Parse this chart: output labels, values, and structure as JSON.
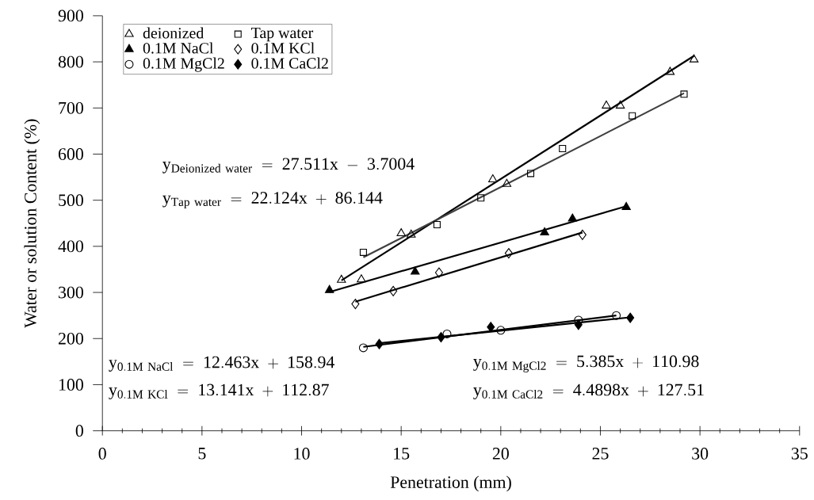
{
  "chart_data": {
    "type": "scatter",
    "xlabel": "Penetration (mm)",
    "ylabel": "Water or solution Content (%)",
    "xlim": [
      0,
      35
    ],
    "ylim": [
      0,
      900
    ],
    "xticks": [
      0,
      5,
      10,
      15,
      20,
      25,
      30,
      35
    ],
    "yticks": [
      0,
      100,
      200,
      300,
      400,
      500,
      600,
      700,
      800,
      900
    ],
    "grid": false,
    "legend": "top left",
    "series": [
      {
        "name": "deionized",
        "marker": "triangle",
        "color": "#000000",
        "x": [
          12,
          13,
          15,
          15.5,
          19.6,
          20.3,
          25.3,
          26,
          28.5,
          29.7
        ],
        "values": [
          327,
          328,
          428,
          425,
          545,
          535,
          705,
          705,
          778,
          805
        ]
      },
      {
        "name": "Tap water",
        "marker": "square",
        "color": "#000000",
        "x": [
          13.1,
          16.8,
          19,
          21.5,
          23.1,
          26.6,
          29.2
        ],
        "values": [
          387,
          447,
          505,
          558,
          612,
          683,
          730
        ]
      },
      {
        "name": "0.1M NaCl",
        "marker": "triangle",
        "color": "#000000",
        "x": [
          11.4,
          15.7,
          22.2,
          23.6,
          26.3
        ],
        "values": [
          305,
          345,
          430,
          460,
          485
        ]
      },
      {
        "name": "0.1M KCl",
        "marker": "diamond",
        "color": "#000000",
        "x": [
          12.7,
          14.6,
          16.9,
          20.4,
          24.1
        ],
        "values": [
          275,
          303,
          343,
          385,
          425
        ]
      },
      {
        "name": "0.1M MgCl2",
        "marker": "circle",
        "color": "#000000",
        "x": [
          13.1,
          17.3,
          20,
          23.9,
          25.8
        ],
        "values": [
          180,
          210,
          218,
          240,
          250
        ]
      },
      {
        "name": "0.1M CaCl2",
        "marker": "diamond",
        "color": "#000000",
        "x": [
          13.9,
          17,
          19.5,
          23.9,
          26.5
        ],
        "values": [
          188,
          203,
          225,
          230,
          245
        ]
      },
      {
        "type": "line",
        "color": "#000000",
        "line_style": "solid",
        "x": [
          12,
          29.7
        ],
        "values": [
          326,
          813
        ]
      },
      {
        "type": "line",
        "color": "#404040",
        "line_style": "solid",
        "x": [
          13.1,
          29.2
        ],
        "values": [
          376,
          732
        ]
      },
      {
        "type": "line",
        "color": "#000000",
        "line_style": "solid",
        "x": [
          11.4,
          26.3
        ],
        "values": [
          301,
          487
        ]
      },
      {
        "type": "line",
        "color": "#000000",
        "line_style": "solid",
        "x": [
          12.7,
          24.1
        ],
        "values": [
          280,
          430
        ]
      },
      {
        "type": "line",
        "color": "#000000",
        "line_style": "solid",
        "x": [
          13.1,
          25.8
        ],
        "values": [
          182,
          250
        ]
      },
      {
        "type": "line",
        "color": "#000000",
        "line_style": "solid",
        "x": [
          13.9,
          26.5
        ],
        "values": [
          190,
          246
        ]
      }
    ],
    "annotations": [
      "\\mathrm{y_{Deionized\\ water}\\ =\\ 27.511x\\ -\\ 3.7004}",
      "\\mathrm{y_{Tap\\ water}\\ =\\ 22.124x\\ +\\ 86.144}",
      "\\mathrm{y_{0.1M\\ NaCl}\\ =\\ 12.463x\\ +\\ 158.94}",
      "\\mathrm{y_{0.1M\\ KCl}\\ =\\ 13.141x\\ +\\ 112.87}",
      "\\mathrm{y_{0.1M\\ MgCl2}\\ =\\ 5.385x\\ +\\ 110.98}",
      "\\mathrm{y_{0.1M\\ CaCl2}\\ =\\ 4.4898x\\ +\\ 127.51}"
    ]
  }
}
